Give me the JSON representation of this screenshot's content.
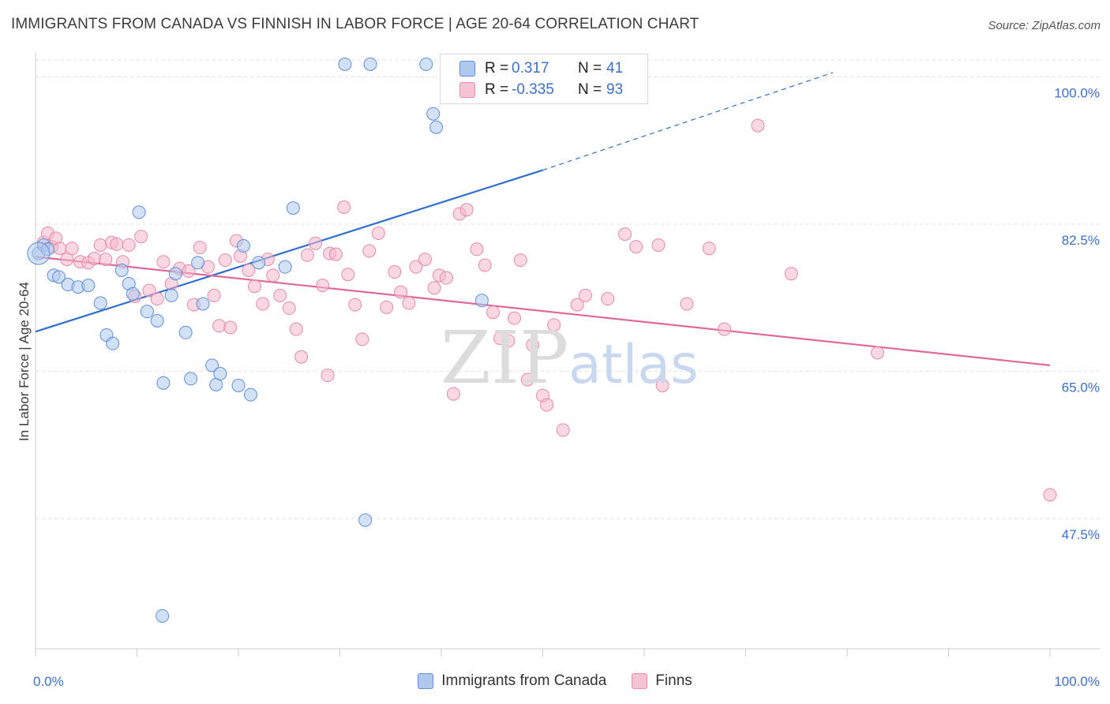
{
  "title": "IMMIGRANTS FROM CANADA VS FINNISH IN LABOR FORCE | AGE 20-64 CORRELATION CHART",
  "source": "Source: ZipAtlas.com",
  "watermark": {
    "zip": "ZIP",
    "atlas": "atlas"
  },
  "legend": {
    "rows": [
      {
        "r_label": "R =",
        "r_value": "0.317",
        "n_label": "N =",
        "n_value": "41"
      },
      {
        "r_label": "R =",
        "r_value": "-0.335",
        "n_label": "N =",
        "n_value": "93"
      }
    ]
  },
  "bottom_legend": [
    {
      "label": "Immigrants from Canada"
    },
    {
      "label": "Finns"
    }
  ],
  "colors": {
    "blue_fill": "#aec8ef",
    "blue_stroke": "#5f8fd6",
    "blue_line": "#2f6fd0",
    "pink_fill": "#f5b8cc",
    "pink_stroke": "#e58aaa",
    "pink_line": "#e0689a",
    "tick": "#3b6fd0",
    "grid": "#dddddd"
  },
  "chart_data": {
    "type": "scatter",
    "title": "IMMIGRANTS FROM CANADA VS FINNISH IN LABOR FORCE | AGE 20-64 CORRELATION CHART",
    "xlabel": "",
    "ylabel": "In Labor Force | Age 20-64",
    "xlim": [
      0,
      100
    ],
    "ylim": [
      32,
      102
    ],
    "x_tick_labels": [
      "0.0%",
      "100.0%"
    ],
    "y_ticks": [
      47.5,
      65.0,
      82.5,
      100.0
    ],
    "y_tick_labels": [
      "47.5%",
      "65.0%",
      "82.5%",
      "100.0%"
    ],
    "series": [
      {
        "name": "Immigrants from Canada",
        "r": 0.317,
        "n": 41,
        "trend": {
          "x0": 0,
          "y0": 69.7,
          "x1": 50,
          "y1": 88.9,
          "dash_x1": 78.6,
          "dash_y1": 100.5
        },
        "points": [
          [
            0.3,
            79.0
          ],
          [
            0.8,
            80.0
          ],
          [
            1.2,
            79.5
          ],
          [
            1.8,
            76.4
          ],
          [
            2.3,
            76.2
          ],
          [
            3.2,
            75.3
          ],
          [
            4.2,
            75.0
          ],
          [
            5.2,
            75.2
          ],
          [
            6.4,
            73.1
          ],
          [
            7.0,
            69.3
          ],
          [
            7.6,
            68.3
          ],
          [
            8.5,
            77.0
          ],
          [
            9.2,
            75.4
          ],
          [
            9.6,
            74.2
          ],
          [
            10.2,
            83.9
          ],
          [
            11.0,
            72.1
          ],
          [
            12.0,
            71.0
          ],
          [
            12.6,
            63.6
          ],
          [
            13.4,
            74.0
          ],
          [
            13.8,
            76.6
          ],
          [
            14.8,
            69.6
          ],
          [
            15.3,
            64.1
          ],
          [
            16.0,
            77.9
          ],
          [
            16.5,
            73.0
          ],
          [
            17.4,
            65.7
          ],
          [
            17.8,
            63.4
          ],
          [
            18.2,
            64.7
          ],
          [
            20.0,
            63.3
          ],
          [
            20.5,
            79.9
          ],
          [
            21.2,
            62.2
          ],
          [
            22.0,
            77.9
          ],
          [
            25.4,
            84.4
          ],
          [
            24.6,
            77.4
          ],
          [
            30.5,
            101.5
          ],
          [
            33.0,
            101.5
          ],
          [
            38.5,
            101.5
          ],
          [
            32.5,
            47.3
          ],
          [
            12.5,
            35.9
          ],
          [
            39.5,
            94.0
          ],
          [
            39.2,
            95.6
          ],
          [
            44.0,
            73.4
          ]
        ]
      },
      {
        "name": "Finns",
        "r": -0.335,
        "n": 93,
        "trend": {
          "x0": 0,
          "y0": 78.6,
          "x1": 100,
          "y1": 65.7
        },
        "points": [
          [
            0.8,
            80.3
          ],
          [
            1.2,
            81.4
          ],
          [
            1.6,
            79.8
          ],
          [
            2.0,
            80.8
          ],
          [
            2.4,
            79.6
          ],
          [
            3.1,
            78.3
          ],
          [
            3.6,
            79.6
          ],
          [
            4.4,
            78.0
          ],
          [
            5.2,
            77.9
          ],
          [
            5.8,
            78.4
          ],
          [
            6.4,
            80.0
          ],
          [
            6.9,
            78.3
          ],
          [
            7.5,
            80.3
          ],
          [
            8.0,
            80.1
          ],
          [
            8.6,
            78.0
          ],
          [
            9.2,
            80.0
          ],
          [
            9.8,
            73.9
          ],
          [
            10.4,
            81.0
          ],
          [
            11.2,
            74.6
          ],
          [
            12.0,
            73.6
          ],
          [
            12.6,
            78.0
          ],
          [
            13.4,
            75.4
          ],
          [
            14.2,
            77.2
          ],
          [
            15.1,
            76.9
          ],
          [
            15.6,
            72.9
          ],
          [
            16.2,
            79.7
          ],
          [
            17.0,
            77.4
          ],
          [
            17.6,
            74.0
          ],
          [
            18.1,
            70.4
          ],
          [
            18.7,
            78.2
          ],
          [
            19.2,
            70.2
          ],
          [
            19.8,
            80.5
          ],
          [
            20.2,
            78.7
          ],
          [
            21.0,
            77.0
          ],
          [
            21.6,
            75.1
          ],
          [
            22.4,
            73.0
          ],
          [
            22.9,
            78.3
          ],
          [
            23.4,
            76.4
          ],
          [
            24.1,
            74.0
          ],
          [
            25.0,
            72.5
          ],
          [
            25.7,
            70.0
          ],
          [
            26.2,
            66.7
          ],
          [
            26.8,
            78.8
          ],
          [
            27.6,
            80.2
          ],
          [
            28.3,
            75.2
          ],
          [
            29.0,
            79.0
          ],
          [
            29.6,
            78.9
          ],
          [
            30.4,
            84.5
          ],
          [
            30.8,
            76.5
          ],
          [
            31.5,
            72.9
          ],
          [
            32.2,
            68.8
          ],
          [
            32.9,
            79.3
          ],
          [
            33.8,
            81.4
          ],
          [
            34.6,
            72.6
          ],
          [
            35.4,
            76.8
          ],
          [
            36.0,
            74.4
          ],
          [
            36.8,
            73.1
          ],
          [
            37.5,
            77.4
          ],
          [
            38.4,
            78.3
          ],
          [
            39.3,
            74.9
          ],
          [
            39.8,
            76.4
          ],
          [
            40.5,
            76.1
          ],
          [
            41.2,
            62.3
          ],
          [
            41.8,
            83.7
          ],
          [
            42.5,
            84.2
          ],
          [
            43.5,
            79.5
          ],
          [
            44.3,
            77.6
          ],
          [
            45.1,
            72.0
          ],
          [
            45.8,
            68.9
          ],
          [
            46.6,
            68.6
          ],
          [
            47.2,
            71.3
          ],
          [
            47.8,
            78.2
          ],
          [
            48.5,
            64.0
          ],
          [
            50.0,
            62.1
          ],
          [
            50.4,
            61.0
          ],
          [
            51.1,
            70.5
          ],
          [
            52.0,
            58.0
          ],
          [
            53.4,
            72.9
          ],
          [
            54.2,
            74.0
          ],
          [
            56.4,
            73.6
          ],
          [
            58.1,
            81.3
          ],
          [
            59.2,
            79.8
          ],
          [
            61.4,
            80.0
          ],
          [
            61.8,
            63.3
          ],
          [
            64.2,
            73.0
          ],
          [
            66.4,
            79.6
          ],
          [
            67.9,
            70.0
          ],
          [
            71.2,
            94.2
          ],
          [
            74.5,
            76.6
          ],
          [
            83.0,
            67.2
          ],
          [
            49.0,
            68.1
          ],
          [
            28.8,
            64.5
          ],
          [
            100.0,
            50.3
          ]
        ]
      }
    ]
  }
}
